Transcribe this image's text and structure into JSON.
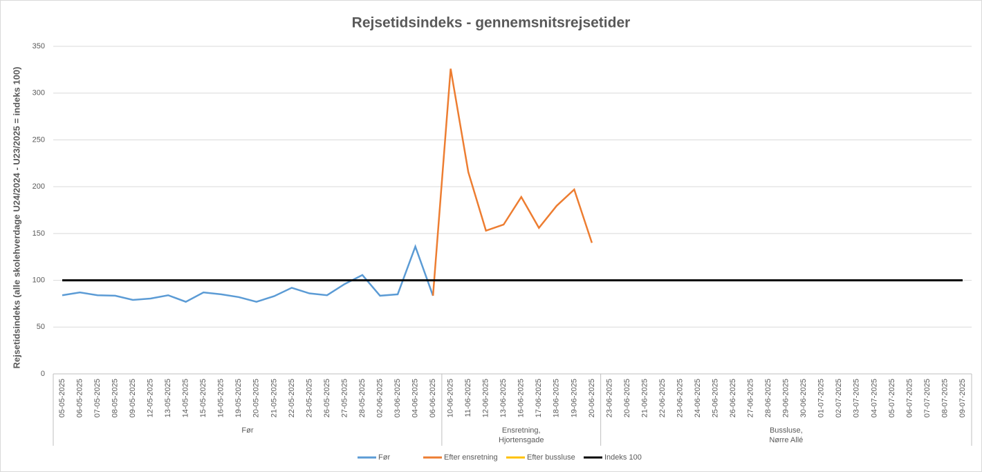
{
  "chart_data": {
    "type": "line",
    "title": "Rejsetidsindeks - gennemsnitsrejsetider",
    "y_label": "Rejsetidsindeks (alle skolehverdage U24/2024 - U23/2025 = indeks 100)",
    "categories": [
      "05-05-2025",
      "06-05-2025",
      "07-05-2025",
      "08-05-2025",
      "09-05-2025",
      "12-05-2025",
      "13-05-2025",
      "14-05-2025",
      "15-05-2025",
      "16-05-2025",
      "19-05-2025",
      "20-05-2025",
      "21-05-2025",
      "22-05-2025",
      "23-05-2025",
      "26-05-2025",
      "27-05-2025",
      "28-05-2025",
      "02-06-2025",
      "03-06-2025",
      "04-06-2025",
      "06-06-2025",
      "10-06-2025",
      "11-06-2025",
      "12-06-2025",
      "13-06-2025",
      "16-06-2025",
      "17-06-2025",
      "18-06-2025",
      "19-06-2025",
      "20-06-2025",
      "23-06-2025",
      "20-06-2025",
      "21-06-2025",
      "22-06-2025",
      "23-06-2025",
      "24-06-2025",
      "25-06-2025",
      "26-06-2025",
      "27-06-2025",
      "28-06-2025",
      "29-06-2025",
      "30-06-2025",
      "01-07-2025",
      "02-07-2025",
      "03-07-2025",
      "04-07-2025",
      "05-07-2025",
      "06-07-2025",
      "07-07-2025",
      "08-07-2025",
      "09-07-2025"
    ],
    "groups": [
      {
        "lines": [
          "Før"
        ],
        "size": 22
      },
      {
        "lines": [
          "Ensretning,",
          "Hjortensgade"
        ],
        "size": 9
      },
      {
        "lines": [
          "Bussluse,",
          "Nørre Allé"
        ],
        "size": 21
      }
    ],
    "series": [
      {
        "name": "Før",
        "color": "#5b9bd5",
        "values": [
          84,
          87,
          84,
          83.5,
          79,
          80.5,
          84,
          77,
          87,
          85,
          82,
          77,
          83,
          92,
          86,
          84,
          96,
          105.6,
          83.5,
          85,
          136,
          83.5,
          null,
          null,
          null,
          null,
          null,
          null,
          null,
          null,
          null,
          null,
          null,
          null,
          null,
          null,
          null,
          null,
          null,
          null,
          null,
          null,
          null,
          null,
          null,
          null,
          null,
          null,
          null,
          null,
          null,
          null
        ]
      },
      {
        "name": "Efter ensretning",
        "color": "#ed7d31",
        "values": [
          null,
          null,
          null,
          null,
          null,
          null,
          null,
          null,
          null,
          null,
          null,
          null,
          null,
          null,
          null,
          null,
          null,
          null,
          null,
          null,
          null,
          83.5,
          326,
          215.6,
          153,
          159.5,
          189,
          156,
          179.5,
          197,
          140,
          null,
          null,
          null,
          null,
          null,
          null,
          null,
          null,
          null,
          null,
          null,
          null,
          null,
          null,
          null,
          null,
          null,
          null,
          null,
          null,
          null
        ]
      },
      {
        "name": "Efter bussluse",
        "color": "#ffc000",
        "values": [
          null,
          null,
          null,
          null,
          null,
          null,
          null,
          null,
          null,
          null,
          null,
          null,
          null,
          null,
          null,
          null,
          null,
          null,
          null,
          null,
          null,
          null,
          null,
          null,
          null,
          null,
          null,
          null,
          null,
          null,
          null,
          null,
          null,
          null,
          null,
          null,
          null,
          null,
          null,
          null,
          null,
          null,
          null,
          null,
          null,
          null,
          null,
          null,
          null,
          null,
          null,
          null
        ]
      },
      {
        "name": "Indeks 100",
        "color": "#000000",
        "values": [
          100,
          100,
          100,
          100,
          100,
          100,
          100,
          100,
          100,
          100,
          100,
          100,
          100,
          100,
          100,
          100,
          100,
          100,
          100,
          100,
          100,
          100,
          100,
          100,
          100,
          100,
          100,
          100,
          100,
          100,
          100,
          100,
          100,
          100,
          100,
          100,
          100,
          100,
          100,
          100,
          100,
          100,
          100,
          100,
          100,
          100,
          100,
          100,
          100,
          100,
          100,
          100
        ]
      }
    ],
    "ylim": [
      0,
      350
    ],
    "yticks": [
      0,
      50,
      100,
      150,
      200,
      250,
      300,
      350
    ],
    "grid": true
  }
}
